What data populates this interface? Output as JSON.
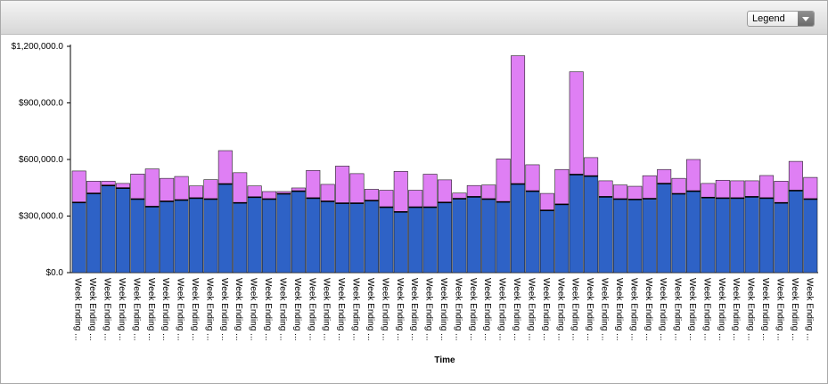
{
  "header": {
    "legend_label": "Legend"
  },
  "colors": {
    "series_bottom": "#2e62c6",
    "series_top": "#df7ff4",
    "background": "#ffffff"
  },
  "chart_data": {
    "type": "bar",
    "stacked": true,
    "xlabel": "Time",
    "ylabel": "",
    "ylim": [
      0,
      1200000
    ],
    "yticks": [
      0,
      300000,
      600000,
      900000,
      1200000
    ],
    "ytick_labels": [
      "$0.0",
      "$300,000.0",
      "$600,000.0",
      "$900,000.0",
      "$1,200,000.0"
    ],
    "grid": false,
    "categories": [
      "Week Ending ...",
      "Week Ending ...",
      "Week Ending ...",
      "Week Ending ...",
      "Week Ending ...",
      "Week Ending ...",
      "Week Ending ...",
      "Week Ending ...",
      "Week Ending ...",
      "Week Ending ...",
      "Week Ending ...",
      "Week Ending ...",
      "Week Ending ...",
      "Week Ending ...",
      "Week Ending ...",
      "Week Ending ...",
      "Week Ending ...",
      "Week Ending ...",
      "Week Ending ...",
      "Week Ending ...",
      "Week Ending ...",
      "Week Ending ...",
      "Week Ending ...",
      "Week Ending ...",
      "Week Ending ...",
      "Week Ending ...",
      "Week Ending ...",
      "Week Ending ...",
      "Week Ending ...",
      "Week Ending ...",
      "Week Ending ...",
      "Week Ending ...",
      "Week Ending ...",
      "Week Ending ...",
      "Week Ending ...",
      "Week Ending ...",
      "Week Ending ...",
      "Week Ending ...",
      "Week Ending ...",
      "Week Ending ...",
      "Week Ending ...",
      "Week Ending ...",
      "Week Ending ...",
      "Week Ending ...",
      "Week Ending ...",
      "Week Ending ...",
      "Week Ending ...",
      "Week Ending ...",
      "Week Ending ...",
      "Week Ending ...",
      "Week Ending ..."
    ],
    "series": [
      {
        "values": [
          372000,
          420000,
          462000,
          448000,
          390000,
          350000,
          378000,
          385000,
          395000,
          390000,
          470000,
          370000,
          400000,
          390000,
          418000,
          432000,
          395000,
          378000,
          368000,
          368000,
          382000,
          347000,
          322000,
          347000,
          347000,
          372000,
          392000,
          402000,
          390000,
          375000,
          470000,
          432000,
          330000,
          362000,
          520000,
          512000,
          402000,
          390000,
          388000,
          392000,
          472000,
          418000,
          432000,
          398000,
          395000,
          395000,
          402000,
          395000,
          370000,
          435000,
          390000
        ]
      },
      {
        "values": [
          167000,
          65000,
          23000,
          25000,
          133000,
          200000,
          122000,
          125000,
          65000,
          103000,
          177000,
          160000,
          60000,
          40000,
          12000,
          17000,
          147000,
          90000,
          197000,
          157000,
          60000,
          90000,
          215000,
          90000,
          175000,
          120000,
          30000,
          60000,
          75000,
          228000,
          680000,
          140000,
          90000,
          185000,
          545000,
          98000,
          85000,
          75000,
          70000,
          122000,
          75000,
          82000,
          168000,
          75000,
          95000,
          92000,
          85000,
          120000,
          115000,
          155000,
          115000
        ]
      }
    ]
  }
}
